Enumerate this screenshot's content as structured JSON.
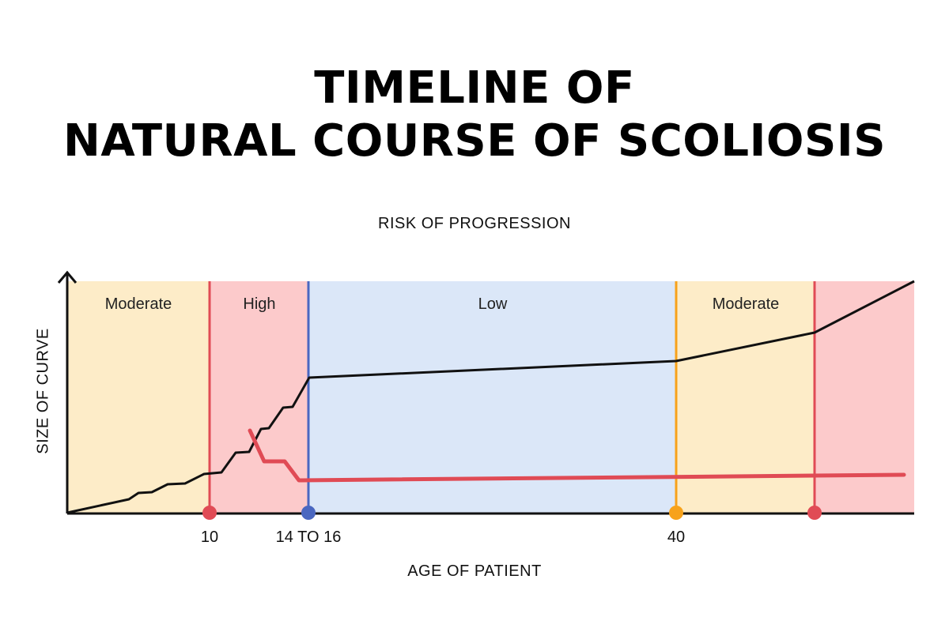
{
  "title": {
    "line1": "TIMELINE OF",
    "line2": "NATURAL COURSE OF SCOLIOSIS"
  },
  "subtitle": "RISK OF PROGRESSION",
  "axes": {
    "y_label": "SIZE OF CURVE",
    "x_label": "AGE OF PATIENT"
  },
  "zones": [
    {
      "label": "Moderate",
      "color": "#fdecc8"
    },
    {
      "label": "High",
      "color": "#fccacb"
    },
    {
      "label": "Low",
      "color": "#dbe7f8"
    },
    {
      "label": "Moderate",
      "color": "#fdecc8"
    },
    {
      "label": "",
      "color": "#fccacb"
    }
  ],
  "markers": [
    {
      "label": "10",
      "color": "#e04b55"
    },
    {
      "label": "14 TO 16",
      "color": "#4a67c0"
    },
    {
      "label": "40",
      "color": "#f7a21b"
    },
    {
      "label": "",
      "color": "#e04b55"
    }
  ],
  "curves": {
    "curve_size_color": "#111111",
    "red_curve_color": "#e04b55"
  }
}
